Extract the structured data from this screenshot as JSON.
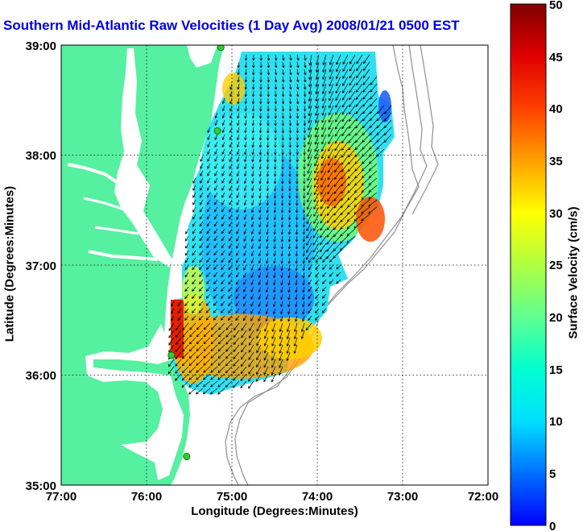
{
  "title": "Southern Mid-Atlantic Raw Velocities (1 Day Avg) 2008/01/21 0500 EST",
  "x_axis": {
    "label": "Longitude (Degrees:Minutes)",
    "ticks": [
      "77:00",
      "76:00",
      "75:00",
      "74:00",
      "73:00",
      "72:00"
    ]
  },
  "y_axis": {
    "label": "Latitude (Degrees:Minutes)",
    "ticks": [
      "39:00",
      "38:00",
      "37:00",
      "36:00",
      "35:00"
    ]
  },
  "colorbar": {
    "label": "Surface Velocity (cm/s)",
    "ticks": [
      "50",
      "45",
      "40",
      "35",
      "30",
      "25",
      "20",
      "15",
      "10",
      "5",
      "0"
    ],
    "range": [
      0,
      50
    ],
    "colormap": "jet"
  },
  "colors": {
    "land": "#55f0a0",
    "water": "#ffffff",
    "title": "#0000e0",
    "radar_station": "#30d030",
    "bathymetry": "#909090"
  },
  "chart_data": {
    "type": "heatmap",
    "title": "Southern Mid-Atlantic Raw Velocities (1 Day Avg) 2008/01/21 0500 EST",
    "xlabel": "Longitude (Degrees:Minutes)",
    "ylabel": "Latitude (Degrees:Minutes)",
    "xlim": [
      -77,
      -72
    ],
    "ylim": [
      35,
      39
    ],
    "value_label": "Surface Velocity (cm/s)",
    "value_range": [
      0,
      50
    ],
    "grid": true,
    "radar_stations": [
      {
        "lon": -75.13,
        "lat": 38.98
      },
      {
        "lon": -75.17,
        "lat": 38.22
      },
      {
        "lon": -75.71,
        "lat": 36.18
      },
      {
        "lon": -75.53,
        "lat": 35.26
      }
    ]
  }
}
